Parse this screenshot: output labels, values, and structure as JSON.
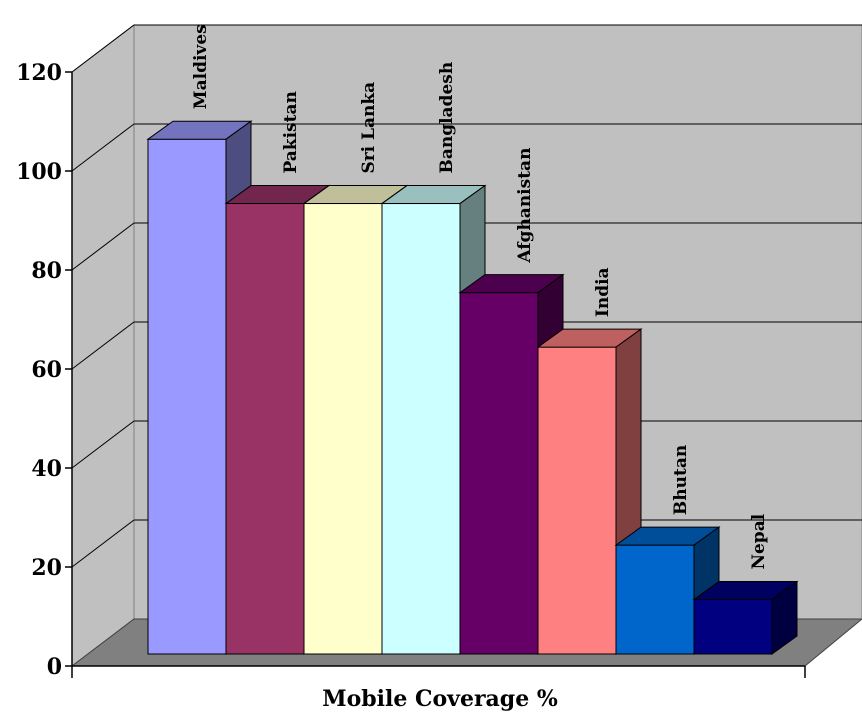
{
  "chart_data": {
    "type": "bar",
    "categories": [
      "Maldives",
      "Pakistan",
      "Sri Lanka",
      "Bangladesh",
      "Afghanistan",
      "India",
      "Bhutan",
      "Nepal"
    ],
    "values": [
      104,
      91,
      91,
      91,
      73,
      62,
      22,
      11
    ],
    "colors": [
      "#9999ff",
      "#993366",
      "#ffffcc",
      "#ccffff",
      "#660066",
      "#ff8080",
      "#0066cc",
      "#000080"
    ],
    "title": "",
    "xlabel": "Mobile Coverage %",
    "ylabel": "",
    "ylim": [
      0,
      120
    ],
    "yticks": [
      "0",
      "20",
      "40",
      "60",
      "80",
      "100",
      "120"
    ],
    "grid": true,
    "style": "3d-column"
  }
}
